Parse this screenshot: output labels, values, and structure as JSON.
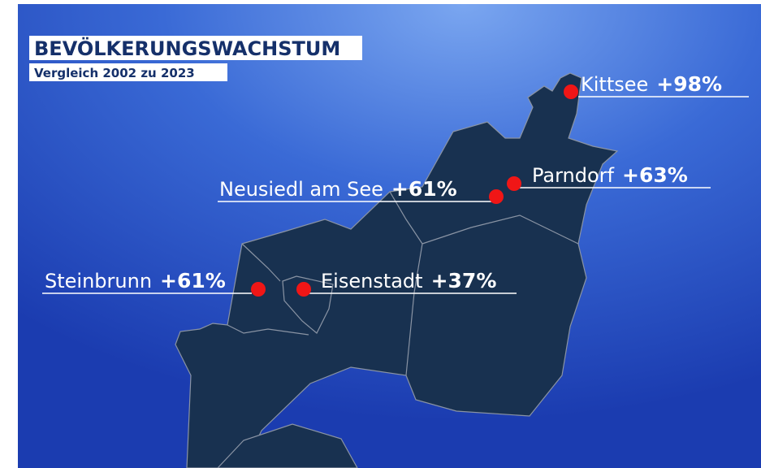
{
  "title": "BEVÖLKERUNGSWACHSTUM",
  "subtitle": "Vergleich 2002 zu 2023",
  "places": [
    {
      "name": "Kittsee",
      "change": "+98%"
    },
    {
      "name": "Parndorf",
      "change": "+63%"
    },
    {
      "name": "Neusiedl am See",
      "change": "+61%"
    },
    {
      "name": "Steinbrunn",
      "change": "+61%"
    },
    {
      "name": "Eisenstadt",
      "change": "+37%"
    }
  ]
}
